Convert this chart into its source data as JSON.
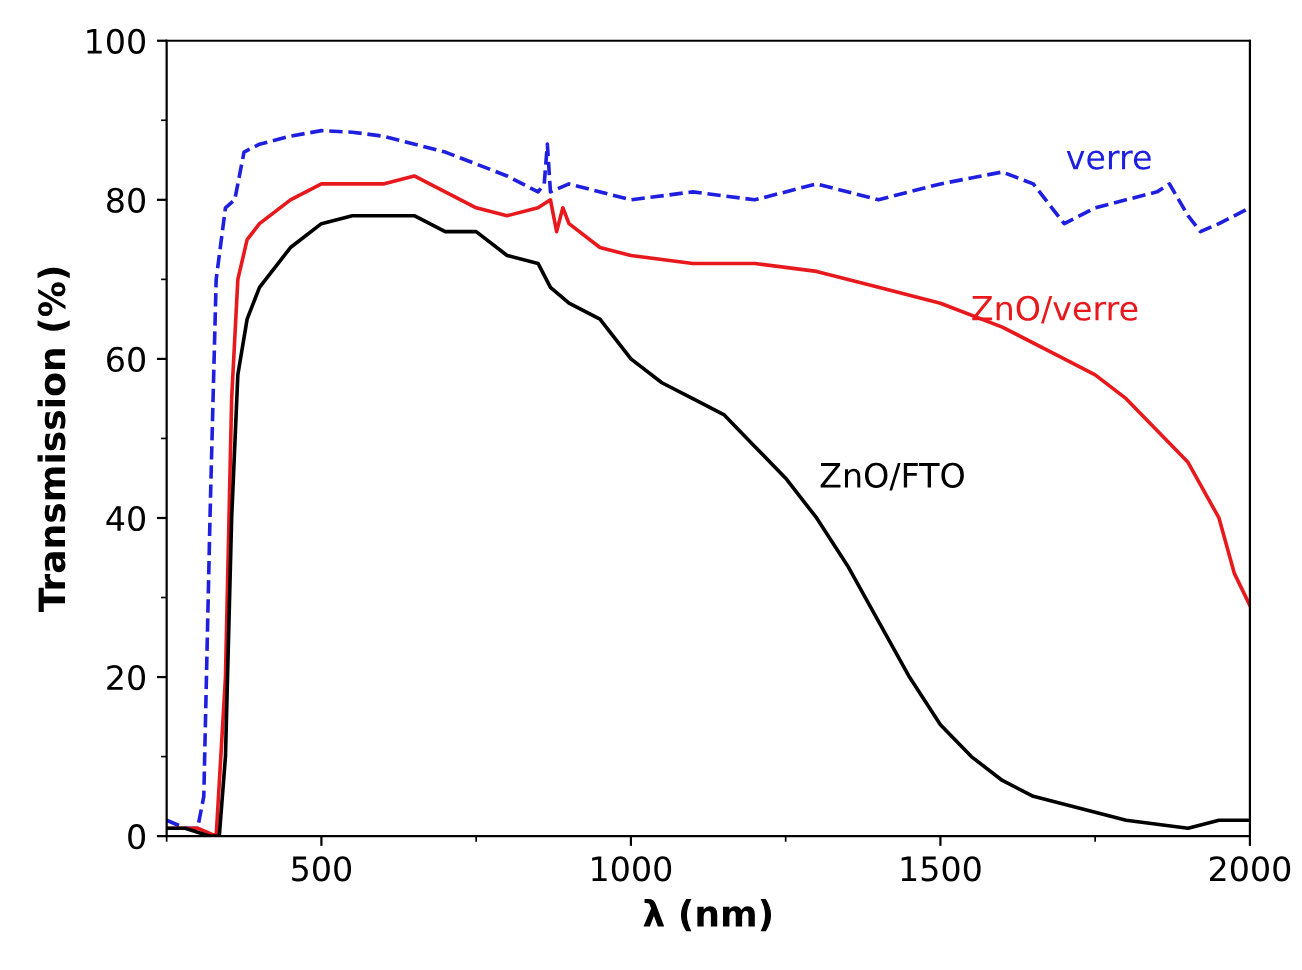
{
  "chart_data": {
    "type": "line",
    "xlabel": "λ (nm)",
    "ylabel": "Transmission (%)",
    "xlim": [
      250,
      2000
    ],
    "ylim": [
      0,
      100
    ],
    "xticks": [
      500,
      1000,
      1500,
      2000
    ],
    "yticks": [
      0,
      20,
      40,
      60,
      80,
      100
    ],
    "grid": false,
    "legend": false,
    "series": [
      {
        "name": "verre",
        "color": "#1f1fe0",
        "line_style": "dashed",
        "x": [
          250,
          280,
          300,
          310,
          320,
          330,
          345,
          360,
          375,
          400,
          450,
          500,
          550,
          600,
          700,
          800,
          850,
          860,
          865,
          870,
          900,
          1000,
          1100,
          1200,
          1300,
          1400,
          1500,
          1600,
          1650,
          1700,
          1750,
          1850,
          1870,
          1900,
          1920,
          1950,
          2000
        ],
        "values": [
          2,
          1,
          1,
          5,
          40,
          70,
          79,
          80,
          86,
          87,
          88,
          88.7,
          88.5,
          88,
          86,
          83,
          81,
          82,
          87,
          81,
          82,
          80,
          81,
          80,
          82,
          80,
          82,
          83.5,
          82,
          77,
          79,
          81,
          82,
          78,
          76,
          77,
          79
        ]
      },
      {
        "name": "ZnO/verre",
        "color": "#e8191c",
        "line_style": "solid",
        "x": [
          250,
          300,
          330,
          345,
          355,
          365,
          380,
          400,
          450,
          500,
          550,
          600,
          650,
          700,
          750,
          800,
          850,
          870,
          880,
          890,
          900,
          950,
          1000,
          1100,
          1200,
          1300,
          1400,
          1500,
          1600,
          1700,
          1750,
          1800,
          1850,
          1900,
          1950,
          1975,
          2000
        ],
        "values": [
          1,
          1,
          0,
          20,
          55,
          70,
          75,
          77,
          80,
          82,
          82,
          82,
          83,
          81,
          79,
          78,
          79,
          80,
          76,
          79,
          77,
          74,
          73,
          72,
          72,
          71,
          69,
          67,
          64,
          60,
          58,
          55,
          51,
          47,
          40,
          33,
          29
        ]
      },
      {
        "name": "ZnO/FTO",
        "color": "#000000",
        "line_style": "solid",
        "x": [
          250,
          280,
          300,
          320,
          335,
          345,
          355,
          365,
          380,
          400,
          450,
          500,
          550,
          600,
          650,
          700,
          750,
          800,
          850,
          870,
          900,
          950,
          1000,
          1050,
          1100,
          1150,
          1200,
          1250,
          1300,
          1350,
          1400,
          1450,
          1500,
          1550,
          1600,
          1650,
          1700,
          1750,
          1800,
          1850,
          1900,
          1950,
          2000
        ],
        "values": [
          1,
          1,
          0.5,
          0,
          0,
          10,
          40,
          58,
          65,
          69,
          74,
          77,
          78,
          78,
          78,
          76,
          76,
          73,
          72,
          69,
          67,
          65,
          60,
          57,
          55,
          53,
          49,
          45,
          40,
          34,
          27,
          20,
          14,
          10,
          7,
          5,
          4,
          3,
          2,
          1.5,
          1,
          2,
          2
        ]
      }
    ]
  }
}
